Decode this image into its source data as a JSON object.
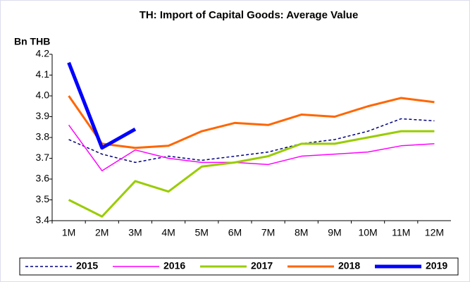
{
  "chart_data": {
    "type": "line",
    "title": "TH: Import of Capital Goods: Average Value",
    "ylabel": "Bn THB",
    "categories": [
      "1M",
      "2M",
      "3M",
      "4M",
      "5M",
      "6M",
      "7M",
      "8M",
      "9M",
      "10M",
      "11M",
      "12M"
    ],
    "series": [
      {
        "name": "2015",
        "color": "#000080",
        "width": 1.5,
        "dashed": true,
        "values": [
          3.79,
          3.72,
          3.68,
          3.71,
          3.69,
          3.71,
          3.73,
          3.77,
          3.79,
          3.83,
          3.89,
          3.88
        ]
      },
      {
        "name": "2016",
        "color": "#ff00ff",
        "width": 1.5,
        "dashed": false,
        "values": [
          3.86,
          3.64,
          3.74,
          3.7,
          3.68,
          3.68,
          3.67,
          3.71,
          3.72,
          3.73,
          3.76,
          3.77
        ]
      },
      {
        "name": "2017",
        "color": "#99cc00",
        "width": 3,
        "dashed": false,
        "values": [
          3.5,
          3.42,
          3.59,
          3.54,
          3.66,
          3.68,
          3.71,
          3.77,
          3.77,
          3.8,
          3.83,
          3.83
        ]
      },
      {
        "name": "2018",
        "color": "#ff6600",
        "width": 3,
        "dashed": false,
        "values": [
          4.0,
          3.77,
          3.75,
          3.76,
          3.83,
          3.87,
          3.86,
          3.91,
          3.9,
          3.95,
          3.99,
          3.97
        ]
      },
      {
        "name": "2019",
        "color": "#0000ff",
        "width": 5,
        "dashed": false,
        "values": [
          4.16,
          3.75,
          3.84,
          null,
          null,
          null,
          null,
          null,
          null,
          null,
          null,
          null
        ]
      }
    ],
    "ylim": [
      3.4,
      4.2
    ],
    "yticks": [
      3.4,
      3.5,
      3.6,
      3.7,
      3.8,
      3.9,
      {
        "value": 4,
        "label": "4.0"
      },
      4.1,
      4.2
    ],
    "legend": "bottom"
  }
}
